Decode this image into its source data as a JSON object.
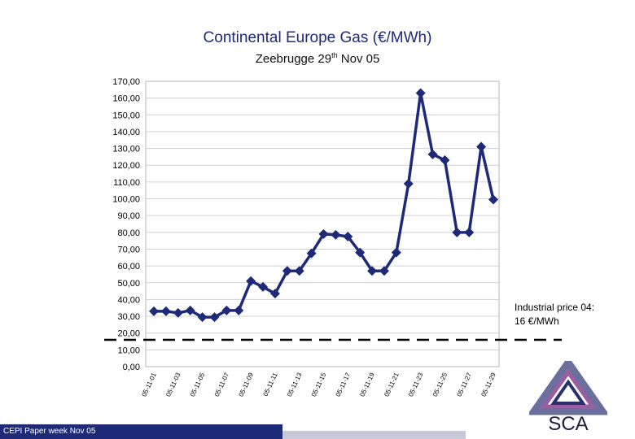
{
  "slide": {
    "footer": "CEPI Paper week Nov 05",
    "logo_text": "SCA"
  },
  "chart_data": {
    "type": "line",
    "title": "Continental Europe Gas (€/MWh)",
    "subtitle_main": "Zeebrugge 29",
    "subtitle_sup": "th",
    "subtitle_end": " Nov 05",
    "xlabel": "",
    "ylabel": "",
    "ylim": [
      0,
      170
    ],
    "ytick_step": 10,
    "ytick_labels": [
      "0,00",
      "10,00",
      "20,00",
      "30,00",
      "40,00",
      "50,00",
      "60,00",
      "70,00",
      "80,00",
      "90,00",
      "100,00",
      "110,00",
      "120,00",
      "130,00",
      "140,00",
      "150,00",
      "160,00",
      "170,00"
    ],
    "grid": true,
    "legend": "none",
    "x_tick_labels": [
      "05-11-01",
      "05-11-03",
      "05-11-05",
      "05-11-07",
      "05-11-09",
      "05-11-11",
      "05-11-13",
      "05-11-15",
      "05-11-17",
      "05-11-19",
      "05-11-21",
      "05-11-23",
      "05-11-25",
      "05-11-27",
      "05-11-29"
    ],
    "series": [
      {
        "name": "Zeebrugge",
        "color": "#1e2a78",
        "values": [
          33,
          33,
          32,
          33.5,
          29.5,
          29.5,
          33.5,
          33.5,
          51,
          47.5,
          43.5,
          57,
          57,
          67.5,
          79,
          78.5,
          77.5,
          68,
          57,
          57,
          68,
          109,
          163,
          126.5,
          123,
          80,
          80,
          131,
          99.5
        ]
      }
    ],
    "reference_line": {
      "value": 16,
      "style": "dashed",
      "color": "#000000"
    },
    "annotation": {
      "line1": "Industrial price 04:",
      "line2": "16 €/MWh"
    }
  }
}
